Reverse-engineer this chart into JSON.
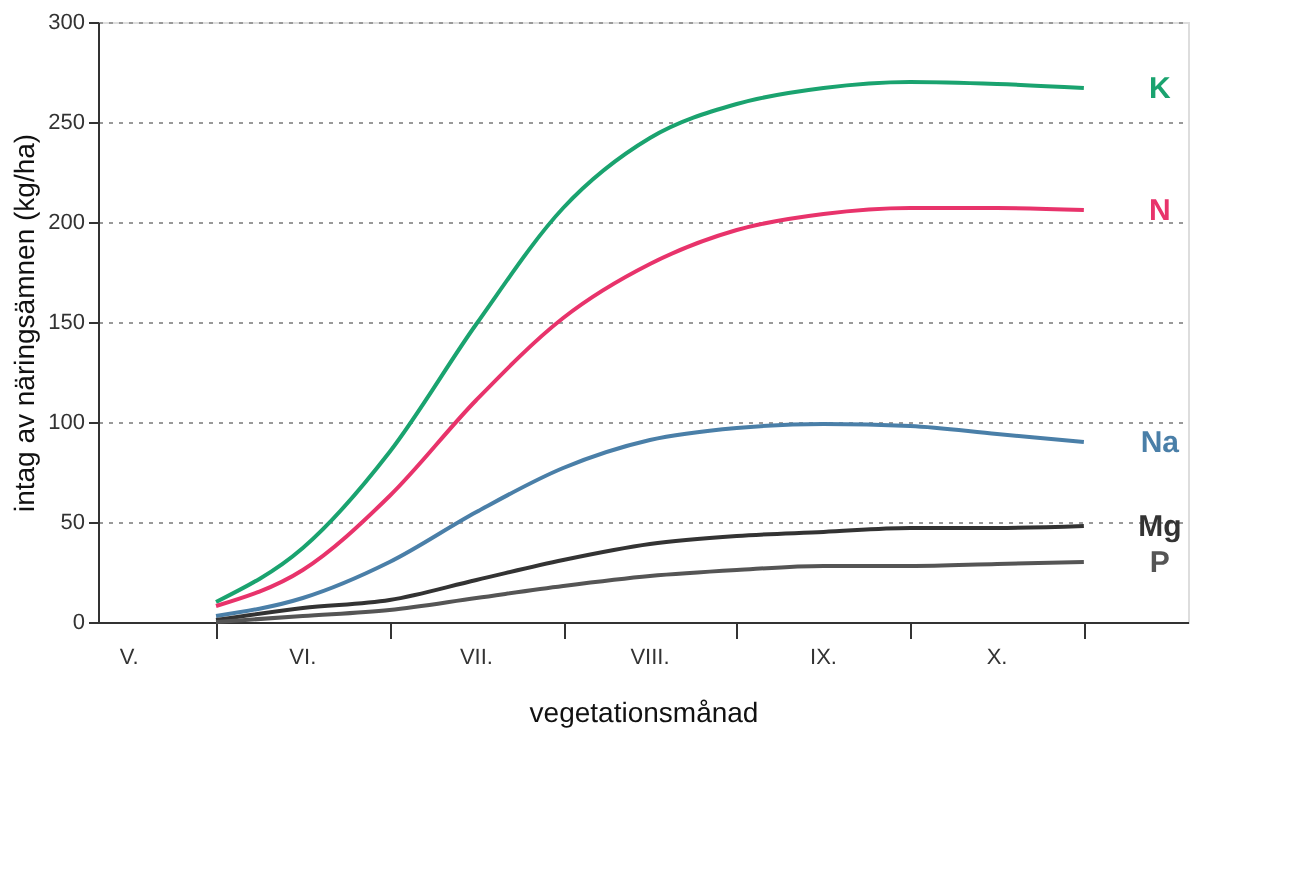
{
  "chart_data": {
    "type": "line",
    "xlabel": "vegetationsmånad",
    "ylabel": "intag av näringsämnen (kg/ha)",
    "categories": [
      "V.",
      null,
      "VI.",
      null,
      "VII.",
      null,
      "VIII.",
      null,
      "IX.",
      null,
      "X.",
      null
    ],
    "series": [
      {
        "name": "K",
        "color": "#1aa36f",
        "values": [
          null,
          10,
          37,
          85,
          149,
          207,
          242,
          259,
          267,
          270,
          269,
          267
        ]
      },
      {
        "name": "N",
        "color": "#e8336b",
        "values": [
          null,
          8,
          26,
          63,
          111,
          152,
          179,
          196,
          204,
          207,
          207,
          206
        ]
      },
      {
        "name": "Na",
        "color": "#4a7fa8",
        "values": [
          null,
          3,
          12,
          30,
          55,
          77,
          91,
          97,
          99,
          98,
          94,
          90
        ]
      },
      {
        "name": "Mg",
        "color": "#333333",
        "values": [
          null,
          1,
          7,
          11,
          21,
          31,
          39,
          43,
          45,
          47,
          47,
          48
        ]
      },
      {
        "name": "P",
        "color": "#555555",
        "values": [
          null,
          0,
          3,
          6,
          12,
          18,
          23,
          26,
          28,
          28,
          29,
          30
        ]
      }
    ],
    "ylim": [
      0,
      300
    ],
    "yticks": [
      0,
      50,
      100,
      150,
      200,
      250,
      300
    ],
    "grid": "y",
    "line_style": "solid",
    "marker": "none",
    "legend": false
  }
}
